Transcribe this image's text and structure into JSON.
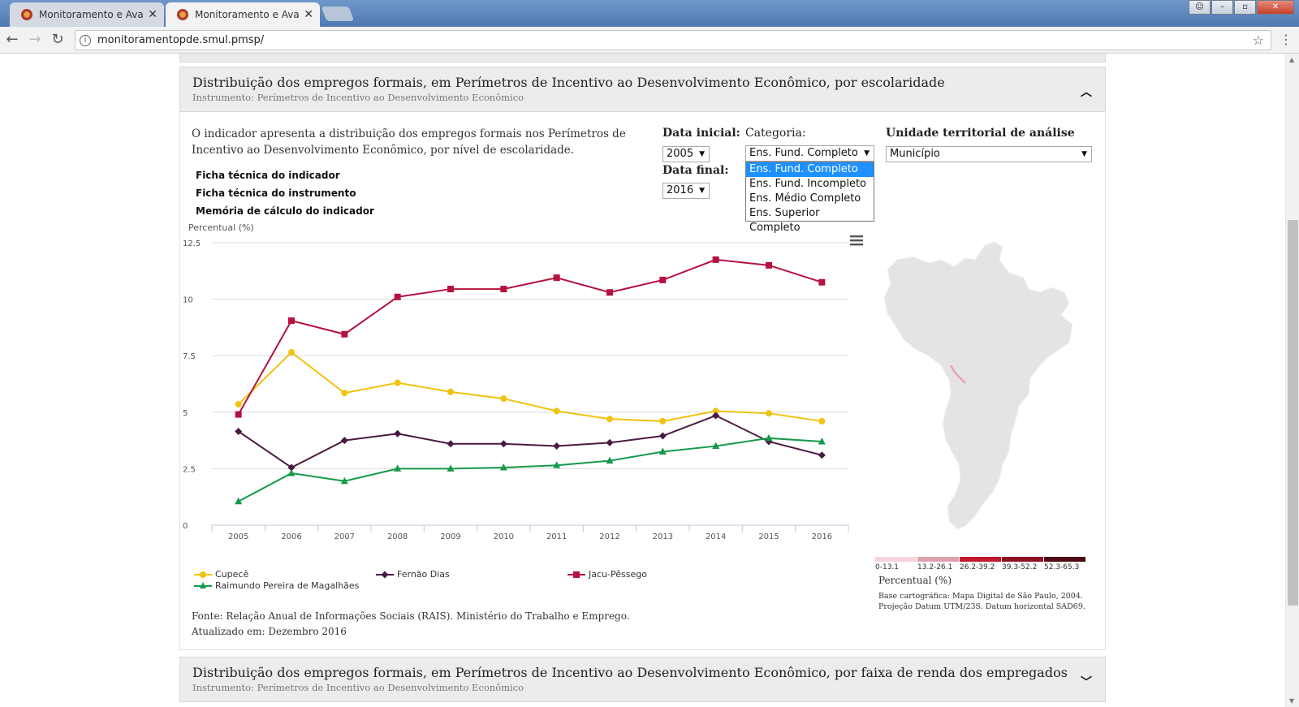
{
  "browser": {
    "tabs": [
      {
        "title": "Monitoramento e Avaliaç",
        "close": "✕"
      },
      {
        "title": "Monitoramento e Avaliaç",
        "close": "✕"
      }
    ],
    "url": "monitoramentopde.smul.pmsp/",
    "back": "←",
    "forward": "→",
    "reload": "↻",
    "star": "☆",
    "menu": "⋮"
  },
  "panel": {
    "title": "Distribuição dos empregos formais, em Perímetros de Incentivo ao Desenvolvimento Econômico, por escolaridade",
    "instrument": "Instrumento: Perímetros de Incentivo ao Desenvolvimento Econômico",
    "description": "O indicador apresenta a distribuição dos empregos formais nos Perímetros de Incentivo ao Desenvolvimento Econômico, por nível de escolaridade.",
    "links": [
      "Ficha técnica do indicador",
      "Ficha técnica do instrumento",
      "Memória de cálculo do indicador"
    ],
    "filters": {
      "data_inicial_label": "Data inicial:",
      "data_inicial_value": "2005",
      "data_final_label": "Data final:",
      "data_final_value": "2016",
      "categoria_label": "Categoria:",
      "categoria_value": "Ens. Fund. Completo",
      "categoria_options": [
        "Ens. Fund. Completo",
        "Ens. Fund. Incompleto",
        "Ens. Médio Completo",
        "Ens. Superior Completo"
      ],
      "unidade_label": "Unidade territorial de análise",
      "unidade_value": "Município"
    },
    "source": "Fonte: Relação Anual de Informações Sociais (RAIS). Ministério do Trabalho e Emprego.",
    "updated": "Atualizado em: Dezembro 2016"
  },
  "chart_data": {
    "type": "line",
    "ylabel": "Percentual (%)",
    "ylim": [
      0,
      12.5
    ],
    "yticks": [
      "0",
      "2.5",
      "5",
      "7.5",
      "10",
      "12.5"
    ],
    "x": [
      "2005",
      "2006",
      "2007",
      "2008",
      "2009",
      "2010",
      "2011",
      "2012",
      "2013",
      "2014",
      "2015",
      "2016"
    ],
    "grid": true,
    "legend": "bottom",
    "series": [
      {
        "name": "Cupecê",
        "color": "#f0c30f",
        "marker": "circle",
        "values": [
          5.35,
          7.65,
          5.85,
          6.3,
          5.9,
          5.6,
          5.05,
          4.7,
          4.6,
          5.05,
          4.95,
          4.6
        ]
      },
      {
        "name": "Fernão Dias",
        "color": "#4a1a42",
        "marker": "diamond",
        "values": [
          4.15,
          2.55,
          3.75,
          4.05,
          3.6,
          3.6,
          3.5,
          3.65,
          3.95,
          4.85,
          3.7,
          3.1
        ]
      },
      {
        "name": "Jacu-Pêssego",
        "color": "#b5123f",
        "marker": "square",
        "values": [
          4.9,
          9.05,
          8.45,
          10.1,
          10.45,
          10.45,
          10.95,
          10.3,
          10.85,
          11.75,
          11.5,
          10.75
        ]
      },
      {
        "name": "Raimundo Pereira de Magalhães",
        "color": "#159a4b",
        "marker": "triangle",
        "values": [
          1.05,
          2.3,
          1.95,
          2.5,
          2.5,
          2.55,
          2.65,
          2.85,
          3.25,
          3.5,
          3.85,
          3.7
        ]
      }
    ]
  },
  "map": {
    "unit": "Percentual (%)",
    "note": [
      "Base cartográfica: Mapa Digital de São Paulo, 2004.",
      "Projeção Datum UTM/23S. Datum horizontal SAD69."
    ],
    "legend": [
      {
        "label": "0-13.1",
        "color": "#f4d4dc"
      },
      {
        "label": "13.2-26.1",
        "color": "#e0a1ae"
      },
      {
        "label": "26.2-39.2",
        "color": "#c2182e"
      },
      {
        "label": "39.3-52.2",
        "color": "#8e1025"
      },
      {
        "label": "52.3-65.3",
        "color": "#4e0a14"
      }
    ]
  },
  "next_panel": {
    "title": "Distribuição dos empregos formais, em Perímetros de Incentivo ao Desenvolvimento Econômico, por faixa de renda dos empregados",
    "instrument": "Instrumento: Perímetros de Incentivo ao Desenvolvimento Econômico"
  }
}
